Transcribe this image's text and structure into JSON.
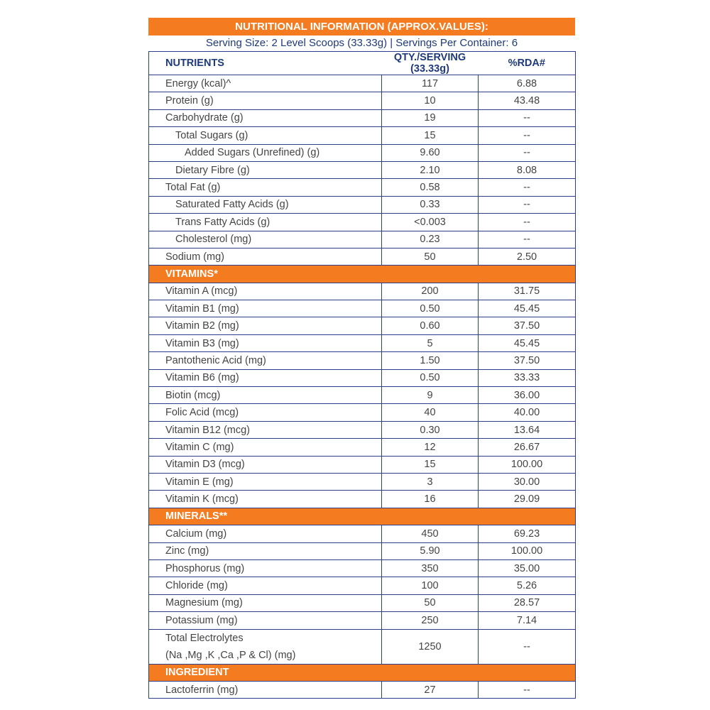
{
  "title": "NUTRITIONAL INFORMATION (APPROX.VALUES):",
  "serving_line": "Serving Size: 2 Level Scoops (33.33g) | Servings Per Container: 6",
  "headers": {
    "nutrients": "NUTRIENTS",
    "qty": "QTY./SERVING (33.33g)",
    "rda": "%RDA#"
  },
  "colors": {
    "accent": "#F47B20",
    "heading": "#1F3A7A",
    "border": "#2B3F8C"
  },
  "rows": [
    {
      "name": "Energy (kcal)^",
      "qty": "117",
      "rda": "6.88",
      "indent": 0
    },
    {
      "name": "Protein (g)",
      "qty": "10",
      "rda": "43.48",
      "indent": 0
    },
    {
      "name": "Carbohydrate (g)",
      "qty": "19",
      "rda": "--",
      "indent": 0
    },
    {
      "name": "Total Sugars (g)",
      "qty": "15",
      "rda": "--",
      "indent": 1
    },
    {
      "name": "Added Sugars (Unrefined) (g)",
      "qty": "9.60",
      "rda": "--",
      "indent": 2
    },
    {
      "name": "Dietary Fibre (g)",
      "qty": "2.10",
      "rda": "8.08",
      "indent": 1
    },
    {
      "name": "Total Fat (g)",
      "qty": "0.58",
      "rda": "--",
      "indent": 0
    },
    {
      "name": "Saturated Fatty Acids (g)",
      "qty": "0.33",
      "rda": "--",
      "indent": 1
    },
    {
      "name": "Trans Fatty Acids (g)",
      "qty": "<0.003",
      "rda": "--",
      "indent": 1
    },
    {
      "name": "Cholesterol (mg)",
      "qty": "0.23",
      "rda": "--",
      "indent": 1
    },
    {
      "name": "Sodium (mg)",
      "qty": "50",
      "rda": "2.50",
      "indent": 0
    },
    {
      "section": "VITAMINS*"
    },
    {
      "name": "Vitamin A (mcg)",
      "qty": "200",
      "rda": "31.75",
      "indent": 0
    },
    {
      "name": "Vitamin B1 (mg)",
      "qty": "0.50",
      "rda": "45.45",
      "indent": 0
    },
    {
      "name": "Vitamin B2 (mg)",
      "qty": "0.60",
      "rda": "37.50",
      "indent": 0
    },
    {
      "name": "Vitamin B3 (mg)",
      "qty": "5",
      "rda": "45.45",
      "indent": 0
    },
    {
      "name": "Pantothenic Acid (mg)",
      "qty": "1.50",
      "rda": "37.50",
      "indent": 0
    },
    {
      "name": "Vitamin B6 (mg)",
      "qty": "0.50",
      "rda": "33.33",
      "indent": 0
    },
    {
      "name": "Biotin (mcg)",
      "qty": "9",
      "rda": "36.00",
      "indent": 0
    },
    {
      "name": "Folic Acid (mcg)",
      "qty": "40",
      "rda": "40.00",
      "indent": 0
    },
    {
      "name": "Vitamin B12 (mcg)",
      "qty": "0.30",
      "rda": "13.64",
      "indent": 0
    },
    {
      "name": "Vitamin C (mg)",
      "qty": "12",
      "rda": "26.67",
      "indent": 0
    },
    {
      "name": "Vitamin D3 (mcg)",
      "qty": "15",
      "rda": "100.00",
      "indent": 0
    },
    {
      "name": "Vitamin E (mg)",
      "qty": "3",
      "rda": "30.00",
      "indent": 0
    },
    {
      "name": "Vitamin K (mcg)",
      "qty": "16",
      "rda": "29.09",
      "indent": 0
    },
    {
      "section": "MINERALS**"
    },
    {
      "name": "Calcium (mg)",
      "qty": "450",
      "rda": "69.23",
      "indent": 0
    },
    {
      "name": "Zinc (mg)",
      "qty": "5.90",
      "rda": "100.00",
      "indent": 0
    },
    {
      "name": "Phosphorus (mg)",
      "qty": "350",
      "rda": "35.00",
      "indent": 0
    },
    {
      "name": "Chloride (mg)",
      "qty": "100",
      "rda": "5.26",
      "indent": 0
    },
    {
      "name": "Magnesium (mg)",
      "qty": "50",
      "rda": "28.57",
      "indent": 0
    },
    {
      "name": "Potassium (mg)",
      "qty": "250",
      "rda": "7.14",
      "indent": 0
    },
    {
      "name": "Total Electrolytes",
      "name2": "(Na ,Mg ,K ,Ca ,P & Cl) (mg)",
      "qty": "1250",
      "rda": "--",
      "indent": 0
    },
    {
      "section": "INGREDIENT"
    },
    {
      "name": "Lactoferrin (mg)",
      "qty": "27",
      "rda": "--",
      "indent": 0
    }
  ]
}
